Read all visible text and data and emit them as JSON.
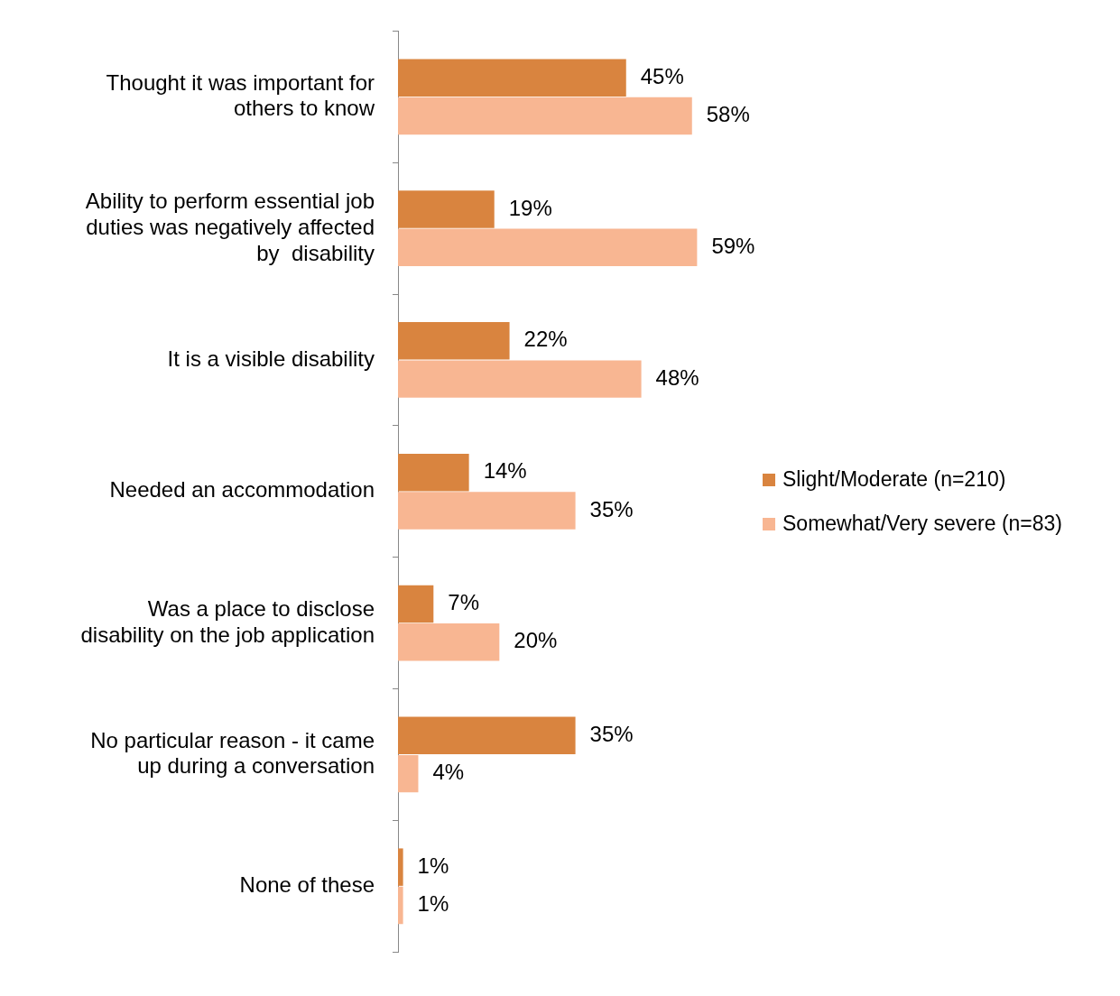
{
  "chart_data": {
    "type": "bar",
    "orientation": "horizontal",
    "categories": [
      "Thought it was important for others to know",
      "Ability to perform essential job duties was negatively affected by  disability",
      "It is a visible disability",
      "Needed an accommodation",
      "Was a place to disclose disability on the job application",
      "No particular reason - it came up during a conversation",
      "None of these"
    ],
    "series": [
      {
        "name": "Slight/Moderate (n=210)",
        "color": "#d9843f",
        "values": [
          45,
          19,
          22,
          14,
          7,
          35,
          1
        ],
        "value_labels": [
          "45%",
          "19%",
          "22%",
          "14%",
          "7%",
          "35%",
          "1%"
        ]
      },
      {
        "name": "Somewhat/Very severe (n=83)",
        "color": "#f8b692",
        "values": [
          58,
          59,
          48,
          35,
          20,
          4,
          1
        ],
        "value_labels": [
          "58%",
          "59%",
          "48%",
          "35%",
          "20%",
          "4%",
          "1%"
        ]
      }
    ],
    "legend": "right"
  }
}
